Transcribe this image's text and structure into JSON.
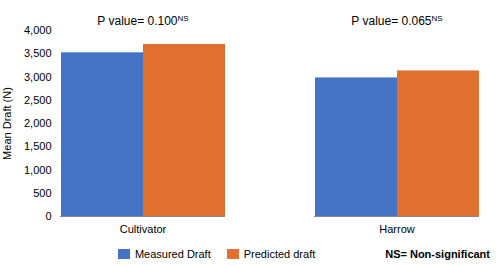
{
  "chart_data": {
    "type": "bar",
    "categories": [
      "Cultivator",
      "Harrow"
    ],
    "series": [
      {
        "name": "Measured Draft",
        "color": "#4472C4",
        "values": [
          3520,
          2980
        ]
      },
      {
        "name": "Predicted draft",
        "color": "#E07030",
        "values": [
          3700,
          3130
        ]
      }
    ],
    "ylabel": "Mean Draft (N)",
    "ylim": [
      0,
      4000
    ],
    "yticks": [
      0,
      500,
      1000,
      1500,
      2000,
      2500,
      3000,
      3500,
      4000
    ],
    "annotations": [
      {
        "category": "Cultivator",
        "text": "P value= 0.100",
        "superscript": "NS"
      },
      {
        "category": "Harrow",
        "text": "P value= 0.065",
        "superscript": "NS"
      }
    ],
    "caption": "NS= Non-significant",
    "legend": "bottom",
    "grid": false
  }
}
